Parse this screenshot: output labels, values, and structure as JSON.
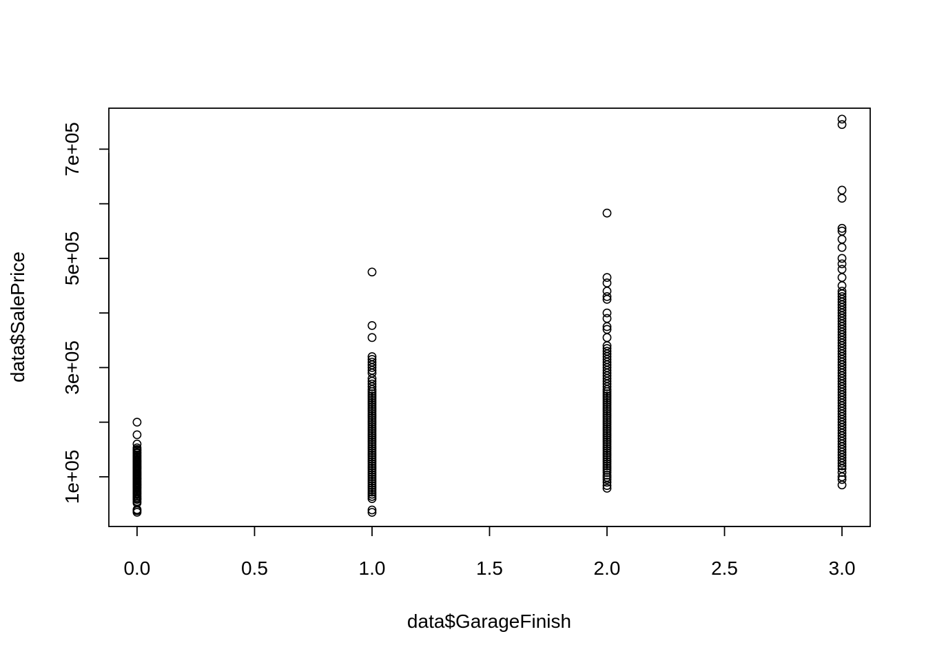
{
  "chart_data": {
    "type": "scatter",
    "title": "",
    "xlabel": "data$GarageFinish",
    "ylabel": "data$SalePrice",
    "xlim": [
      -0.12,
      3.12
    ],
    "ylim": [
      9000,
      775000
    ],
    "x_ticks": [
      {
        "value": 0.0,
        "label": "0.0"
      },
      {
        "value": 0.5,
        "label": "0.5"
      },
      {
        "value": 1.0,
        "label": "1.0"
      },
      {
        "value": 1.5,
        "label": "1.5"
      },
      {
        "value": 2.0,
        "label": "2.0"
      },
      {
        "value": 2.5,
        "label": "2.5"
      },
      {
        "value": 3.0,
        "label": "3.0"
      }
    ],
    "y_ticks": [
      {
        "value": 100000,
        "label": "1e+05"
      },
      {
        "value": 200000,
        "label": ""
      },
      {
        "value": 300000,
        "label": "3e+05"
      },
      {
        "value": 400000,
        "label": ""
      },
      {
        "value": 500000,
        "label": "5e+05"
      },
      {
        "value": 600000,
        "label": ""
      },
      {
        "value": 700000,
        "label": "7e+05"
      }
    ],
    "grid": false,
    "legend": "none",
    "series": [
      {
        "points": [
          [
            0,
            35000
          ],
          [
            0,
            37900
          ],
          [
            0,
            40000
          ],
          [
            0,
            52000
          ],
          [
            0,
            55000
          ],
          [
            0,
            58500
          ],
          [
            0,
            60000
          ],
          [
            0,
            62383
          ],
          [
            0,
            65000
          ],
          [
            0,
            68000
          ],
          [
            0,
            70000
          ],
          [
            0,
            72500
          ],
          [
            0,
            75000
          ],
          [
            0,
            78000
          ],
          [
            0,
            80000
          ],
          [
            0,
            82000
          ],
          [
            0,
            84500
          ],
          [
            0,
            86000
          ],
          [
            0,
            88000
          ],
          [
            0,
            90000
          ],
          [
            0,
            92000
          ],
          [
            0,
            94500
          ],
          [
            0,
            96500
          ],
          [
            0,
            98000
          ],
          [
            0,
            100000
          ],
          [
            0,
            102000
          ],
          [
            0,
            104000
          ],
          [
            0,
            106000
          ],
          [
            0,
            108000
          ],
          [
            0,
            110000
          ],
          [
            0,
            112000
          ],
          [
            0,
            114500
          ],
          [
            0,
            116000
          ],
          [
            0,
            118000
          ],
          [
            0,
            120000
          ],
          [
            0,
            122000
          ],
          [
            0,
            124000
          ],
          [
            0,
            126000
          ],
          [
            0,
            128000
          ],
          [
            0,
            130000
          ],
          [
            0,
            132500
          ],
          [
            0,
            135000
          ],
          [
            0,
            137500
          ],
          [
            0,
            140000
          ],
          [
            0,
            143000
          ],
          [
            0,
            145000
          ],
          [
            0,
            148000
          ],
          [
            0,
            150000
          ],
          [
            0,
            153000
          ],
          [
            0,
            160000
          ],
          [
            0,
            177000
          ],
          [
            0,
            200000
          ],
          [
            1,
            34900
          ],
          [
            1,
            39300
          ],
          [
            1,
            60000
          ],
          [
            1,
            64000
          ],
          [
            1,
            68000
          ],
          [
            1,
            72000
          ],
          [
            1,
            76000
          ],
          [
            1,
            80000
          ],
          [
            1,
            84000
          ],
          [
            1,
            88000
          ],
          [
            1,
            92000
          ],
          [
            1,
            96000
          ],
          [
            1,
            100000
          ],
          [
            1,
            104000
          ],
          [
            1,
            108000
          ],
          [
            1,
            112000
          ],
          [
            1,
            116000
          ],
          [
            1,
            120000
          ],
          [
            1,
            124000
          ],
          [
            1,
            128000
          ],
          [
            1,
            132000
          ],
          [
            1,
            136000
          ],
          [
            1,
            140000
          ],
          [
            1,
            144000
          ],
          [
            1,
            148000
          ],
          [
            1,
            152000
          ],
          [
            1,
            156000
          ],
          [
            1,
            160000
          ],
          [
            1,
            164000
          ],
          [
            1,
            168000
          ],
          [
            1,
            172000
          ],
          [
            1,
            176000
          ],
          [
            1,
            180000
          ],
          [
            1,
            184000
          ],
          [
            1,
            188000
          ],
          [
            1,
            192000
          ],
          [
            1,
            196000
          ],
          [
            1,
            200000
          ],
          [
            1,
            204000
          ],
          [
            1,
            208000
          ],
          [
            1,
            212000
          ],
          [
            1,
            216000
          ],
          [
            1,
            220000
          ],
          [
            1,
            224000
          ],
          [
            1,
            228000
          ],
          [
            1,
            232000
          ],
          [
            1,
            236000
          ],
          [
            1,
            240000
          ],
          [
            1,
            244000
          ],
          [
            1,
            248000
          ],
          [
            1,
            252000
          ],
          [
            1,
            256000
          ],
          [
            1,
            260000
          ],
          [
            1,
            265000
          ],
          [
            1,
            270000
          ],
          [
            1,
            275000
          ],
          [
            1,
            280000
          ],
          [
            1,
            290000
          ],
          [
            1,
            295000
          ],
          [
            1,
            300000
          ],
          [
            1,
            305000
          ],
          [
            1,
            310000
          ],
          [
            1,
            315000
          ],
          [
            1,
            320000
          ],
          [
            1,
            355000
          ],
          [
            1,
            377000
          ],
          [
            1,
            475000
          ],
          [
            2,
            79000
          ],
          [
            2,
            84000
          ],
          [
            2,
            90000
          ],
          [
            2,
            95000
          ],
          [
            2,
            99000
          ],
          [
            2,
            103000
          ],
          [
            2,
            108000
          ],
          [
            2,
            112000
          ],
          [
            2,
            116000
          ],
          [
            2,
            120000
          ],
          [
            2,
            124000
          ],
          [
            2,
            128000
          ],
          [
            2,
            132000
          ],
          [
            2,
            136000
          ],
          [
            2,
            140000
          ],
          [
            2,
            144000
          ],
          [
            2,
            148000
          ],
          [
            2,
            152000
          ],
          [
            2,
            156000
          ],
          [
            2,
            160000
          ],
          [
            2,
            164000
          ],
          [
            2,
            168000
          ],
          [
            2,
            172000
          ],
          [
            2,
            176000
          ],
          [
            2,
            180000
          ],
          [
            2,
            184000
          ],
          [
            2,
            188000
          ],
          [
            2,
            192000
          ],
          [
            2,
            196000
          ],
          [
            2,
            200000
          ],
          [
            2,
            204000
          ],
          [
            2,
            208000
          ],
          [
            2,
            212000
          ],
          [
            2,
            216000
          ],
          [
            2,
            220000
          ],
          [
            2,
            224000
          ],
          [
            2,
            228000
          ],
          [
            2,
            232000
          ],
          [
            2,
            236000
          ],
          [
            2,
            240000
          ],
          [
            2,
            244000
          ],
          [
            2,
            248000
          ],
          [
            2,
            252000
          ],
          [
            2,
            256000
          ],
          [
            2,
            260000
          ],
          [
            2,
            265000
          ],
          [
            2,
            270000
          ],
          [
            2,
            275000
          ],
          [
            2,
            280000
          ],
          [
            2,
            285000
          ],
          [
            2,
            290000
          ],
          [
            2,
            295000
          ],
          [
            2,
            300000
          ],
          [
            2,
            305000
          ],
          [
            2,
            310000
          ],
          [
            2,
            315000
          ],
          [
            2,
            320000
          ],
          [
            2,
            325000
          ],
          [
            2,
            330000
          ],
          [
            2,
            335000
          ],
          [
            2,
            340000
          ],
          [
            2,
            355000
          ],
          [
            2,
            370000
          ],
          [
            2,
            375000
          ],
          [
            2,
            390000
          ],
          [
            2,
            400000
          ],
          [
            2,
            425000
          ],
          [
            2,
            430000
          ],
          [
            2,
            440000
          ],
          [
            2,
            455000
          ],
          [
            2,
            465000
          ],
          [
            2,
            582933
          ],
          [
            3,
            85000
          ],
          [
            3,
            95000
          ],
          [
            3,
            100000
          ],
          [
            3,
            108000
          ],
          [
            3,
            115000
          ],
          [
            3,
            120000
          ],
          [
            3,
            125000
          ],
          [
            3,
            130000
          ],
          [
            3,
            135000
          ],
          [
            3,
            140000
          ],
          [
            3,
            145000
          ],
          [
            3,
            150000
          ],
          [
            3,
            155000
          ],
          [
            3,
            160000
          ],
          [
            3,
            165000
          ],
          [
            3,
            170000
          ],
          [
            3,
            175000
          ],
          [
            3,
            180000
          ],
          [
            3,
            185000
          ],
          [
            3,
            190000
          ],
          [
            3,
            195000
          ],
          [
            3,
            200000
          ],
          [
            3,
            205000
          ],
          [
            3,
            210000
          ],
          [
            3,
            215000
          ],
          [
            3,
            220000
          ],
          [
            3,
            225000
          ],
          [
            3,
            230000
          ],
          [
            3,
            235000
          ],
          [
            3,
            240000
          ],
          [
            3,
            245000
          ],
          [
            3,
            250000
          ],
          [
            3,
            255000
          ],
          [
            3,
            260000
          ],
          [
            3,
            265000
          ],
          [
            3,
            270000
          ],
          [
            3,
            275000
          ],
          [
            3,
            280000
          ],
          [
            3,
            285000
          ],
          [
            3,
            290000
          ],
          [
            3,
            295000
          ],
          [
            3,
            300000
          ],
          [
            3,
            305000
          ],
          [
            3,
            310000
          ],
          [
            3,
            315000
          ],
          [
            3,
            320000
          ],
          [
            3,
            325000
          ],
          [
            3,
            330000
          ],
          [
            3,
            335000
          ],
          [
            3,
            340000
          ],
          [
            3,
            345000
          ],
          [
            3,
            350000
          ],
          [
            3,
            355000
          ],
          [
            3,
            360000
          ],
          [
            3,
            365000
          ],
          [
            3,
            370000
          ],
          [
            3,
            375000
          ],
          [
            3,
            380000
          ],
          [
            3,
            385000
          ],
          [
            3,
            390000
          ],
          [
            3,
            395000
          ],
          [
            3,
            400000
          ],
          [
            3,
            405000
          ],
          [
            3,
            410000
          ],
          [
            3,
            415000
          ],
          [
            3,
            420000
          ],
          [
            3,
            425000
          ],
          [
            3,
            430000
          ],
          [
            3,
            435000
          ],
          [
            3,
            440000
          ],
          [
            3,
            450000
          ],
          [
            3,
            465000
          ],
          [
            3,
            480000
          ],
          [
            3,
            490000
          ],
          [
            3,
            500000
          ],
          [
            3,
            520000
          ],
          [
            3,
            535000
          ],
          [
            3,
            550000
          ],
          [
            3,
            555000
          ],
          [
            3,
            610000
          ],
          [
            3,
            625000
          ],
          [
            3,
            745000
          ],
          [
            3,
            755000
          ]
        ]
      }
    ]
  }
}
